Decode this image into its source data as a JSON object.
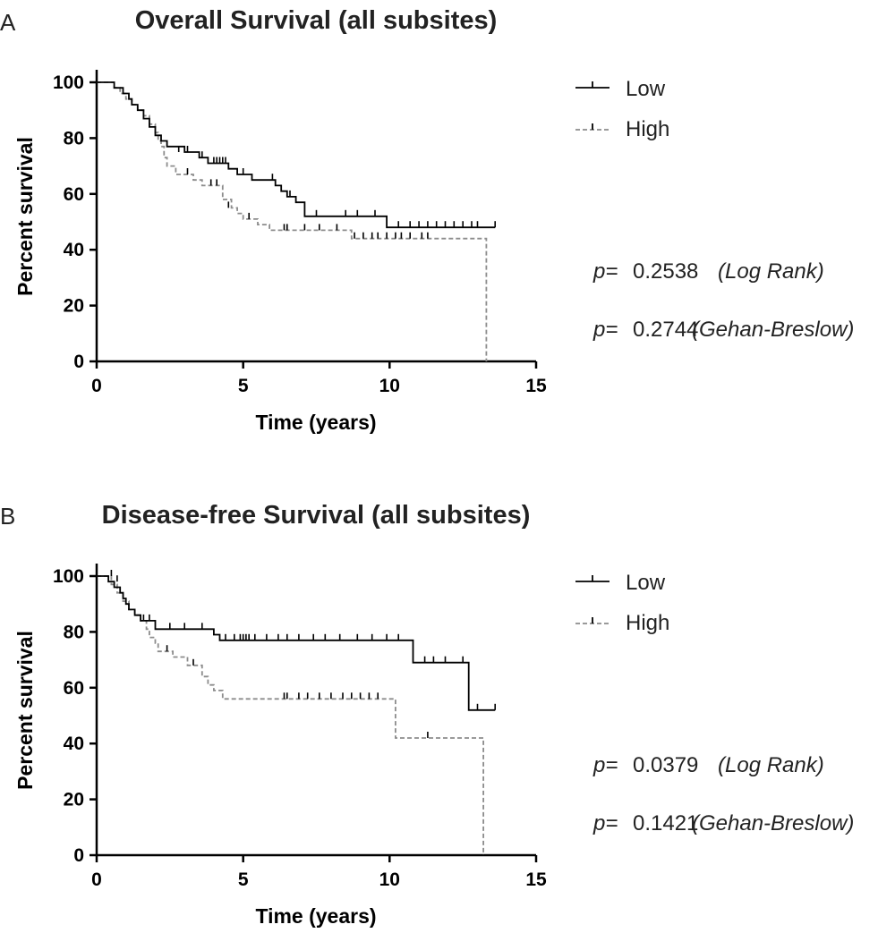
{
  "chart_data": [
    {
      "panel_label": "A",
      "type": "line",
      "title": "Overall Survival (all subsites)",
      "xlabel": "Time (years)",
      "ylabel": "Percent survival",
      "xlim": [
        0,
        15
      ],
      "ylim": [
        0,
        100
      ],
      "xticks": [
        0,
        5,
        10,
        15
      ],
      "yticks": [
        0,
        20,
        40,
        60,
        80,
        100
      ],
      "legend_position": "top-right",
      "series": [
        {
          "name": "Low",
          "color": "#000000",
          "dashed": false,
          "steps": [
            [
              0,
              100
            ],
            [
              0.4,
              100
            ],
            [
              0.6,
              98
            ],
            [
              0.9,
              96
            ],
            [
              1.1,
              94
            ],
            [
              1.2,
              92
            ],
            [
              1.4,
              90
            ],
            [
              1.6,
              87
            ],
            [
              1.8,
              84
            ],
            [
              2.0,
              81
            ],
            [
              2.2,
              79
            ],
            [
              2.4,
              77
            ],
            [
              3.0,
              75
            ],
            [
              3.5,
              73
            ],
            [
              3.8,
              71
            ],
            [
              4.5,
              69
            ],
            [
              4.8,
              67
            ],
            [
              5.3,
              65
            ],
            [
              6.1,
              63
            ],
            [
              6.3,
              61
            ],
            [
              6.5,
              59
            ],
            [
              6.8,
              57
            ],
            [
              7.1,
              52
            ],
            [
              9.9,
              48
            ],
            [
              13.6,
              48
            ]
          ],
          "censors": [
            [
              2.8,
              75
            ],
            [
              3.1,
              75
            ],
            [
              3.6,
              73
            ],
            [
              4.0,
              71
            ],
            [
              4.1,
              71
            ],
            [
              4.2,
              71
            ],
            [
              4.3,
              71
            ],
            [
              4.4,
              71
            ],
            [
              5.0,
              67
            ],
            [
              6.0,
              65
            ],
            [
              6.6,
              59
            ],
            [
              7.5,
              52
            ],
            [
              8.5,
              52
            ],
            [
              8.9,
              52
            ],
            [
              9.5,
              52
            ],
            [
              10.3,
              48
            ],
            [
              10.7,
              48
            ],
            [
              11.0,
              48
            ],
            [
              11.3,
              48
            ],
            [
              11.6,
              48
            ],
            [
              11.9,
              48
            ],
            [
              12.2,
              48
            ],
            [
              12.5,
              48
            ],
            [
              12.8,
              48
            ],
            [
              13.0,
              48
            ],
            [
              13.6,
              48
            ]
          ]
        },
        {
          "name": "High",
          "color": "#8c8c8c",
          "dashed": true,
          "steps": [
            [
              0,
              100
            ],
            [
              0.6,
              98
            ],
            [
              0.8,
              96
            ],
            [
              1.0,
              94
            ],
            [
              1.2,
              92
            ],
            [
              1.4,
              90
            ],
            [
              1.6,
              88
            ],
            [
              1.8,
              85
            ],
            [
              2.0,
              82
            ],
            [
              2.1,
              79
            ],
            [
              2.2,
              77
            ],
            [
              2.3,
              73
            ],
            [
              2.4,
              70
            ],
            [
              2.7,
              67
            ],
            [
              3.3,
              65
            ],
            [
              3.6,
              63
            ],
            [
              4.3,
              58
            ],
            [
              4.6,
              55
            ],
            [
              4.8,
              53
            ],
            [
              5.0,
              51
            ],
            [
              5.5,
              49
            ],
            [
              5.9,
              47
            ],
            [
              8.7,
              44
            ],
            [
              13.3,
              0
            ]
          ],
          "censors": [
            [
              3.1,
              67
            ],
            [
              3.9,
              63
            ],
            [
              4.1,
              63
            ],
            [
              4.5,
              55
            ],
            [
              5.2,
              51
            ],
            [
              6.4,
              47
            ],
            [
              6.5,
              47
            ],
            [
              7.1,
              47
            ],
            [
              7.6,
              47
            ],
            [
              8.2,
              47
            ],
            [
              8.8,
              44
            ],
            [
              9.1,
              44
            ],
            [
              9.4,
              44
            ],
            [
              9.6,
              44
            ],
            [
              9.9,
              44
            ],
            [
              10.2,
              44
            ],
            [
              10.4,
              44
            ],
            [
              10.7,
              44
            ],
            [
              11.1,
              44
            ],
            [
              11.3,
              44
            ]
          ]
        }
      ],
      "annotations": [
        {
          "p_label": "p=",
          "value": "0.2538",
          "test": "(Log Rank)"
        },
        {
          "p_label": "p=",
          "value": "0.2744",
          "test": "(Gehan-Breslow)"
        }
      ]
    },
    {
      "panel_label": "B",
      "type": "line",
      "title": "Disease-free Survival (all subsites)",
      "xlabel": "Time (years)",
      "ylabel": "Percent survival",
      "xlim": [
        0,
        15
      ],
      "ylim": [
        0,
        100
      ],
      "xticks": [
        0,
        5,
        10,
        15
      ],
      "yticks": [
        0,
        20,
        40,
        60,
        80,
        100
      ],
      "legend_position": "top-right",
      "series": [
        {
          "name": "Low",
          "color": "#000000",
          "dashed": false,
          "steps": [
            [
              0,
              100
            ],
            [
              0.4,
              98
            ],
            [
              0.6,
              96
            ],
            [
              0.8,
              94
            ],
            [
              0.9,
              92
            ],
            [
              1.0,
              90
            ],
            [
              1.1,
              88
            ],
            [
              1.3,
              86
            ],
            [
              1.5,
              84
            ],
            [
              2.0,
              81
            ],
            [
              4.0,
              79
            ],
            [
              4.2,
              77
            ],
            [
              10.8,
              69
            ],
            [
              12.7,
              52
            ],
            [
              13.6,
              52
            ]
          ],
          "censors": [
            [
              0.5,
              100
            ],
            [
              0.7,
              98
            ],
            [
              1.6,
              84
            ],
            [
              1.8,
              84
            ],
            [
              2.5,
              81
            ],
            [
              3.0,
              81
            ],
            [
              3.6,
              81
            ],
            [
              4.4,
              77
            ],
            [
              4.7,
              77
            ],
            [
              4.9,
              77
            ],
            [
              5.0,
              77
            ],
            [
              5.1,
              77
            ],
            [
              5.2,
              77
            ],
            [
              5.4,
              77
            ],
            [
              5.8,
              77
            ],
            [
              6.2,
              77
            ],
            [
              6.5,
              77
            ],
            [
              6.9,
              77
            ],
            [
              7.4,
              77
            ],
            [
              7.8,
              77
            ],
            [
              8.3,
              77
            ],
            [
              8.9,
              77
            ],
            [
              9.4,
              77
            ],
            [
              9.9,
              77
            ],
            [
              10.3,
              77
            ],
            [
              11.2,
              69
            ],
            [
              11.5,
              69
            ],
            [
              11.9,
              69
            ],
            [
              12.5,
              69
            ],
            [
              13.0,
              52
            ],
            [
              13.6,
              52
            ]
          ]
        },
        {
          "name": "High",
          "color": "#8c8c8c",
          "dashed": true,
          "steps": [
            [
              0,
              100
            ],
            [
              0.5,
              97
            ],
            [
              0.7,
              94
            ],
            [
              0.9,
              91
            ],
            [
              1.1,
              88
            ],
            [
              1.3,
              86
            ],
            [
              1.5,
              84
            ],
            [
              1.7,
              81
            ],
            [
              1.8,
              78
            ],
            [
              2.0,
              76
            ],
            [
              2.1,
              73
            ],
            [
              2.6,
              71
            ],
            [
              3.1,
              68
            ],
            [
              3.6,
              64
            ],
            [
              3.8,
              61
            ],
            [
              4.0,
              59
            ],
            [
              4.3,
              56
            ],
            [
              10.2,
              42
            ],
            [
              13.2,
              0
            ]
          ],
          "censors": [
            [
              2.4,
              73
            ],
            [
              3.3,
              68
            ],
            [
              6.4,
              56
            ],
            [
              6.5,
              56
            ],
            [
              6.9,
              56
            ],
            [
              7.2,
              56
            ],
            [
              7.6,
              56
            ],
            [
              8.0,
              56
            ],
            [
              8.4,
              56
            ],
            [
              8.7,
              56
            ],
            [
              9.0,
              56
            ],
            [
              9.3,
              56
            ],
            [
              9.6,
              56
            ],
            [
              11.3,
              42
            ]
          ]
        }
      ],
      "annotations": [
        {
          "p_label": "p=",
          "value": "0.0379",
          "test": "(Log Rank)"
        },
        {
          "p_label": "p=",
          "value": "0.1421",
          "test": "(Gehan-Breslow)"
        }
      ]
    }
  ]
}
